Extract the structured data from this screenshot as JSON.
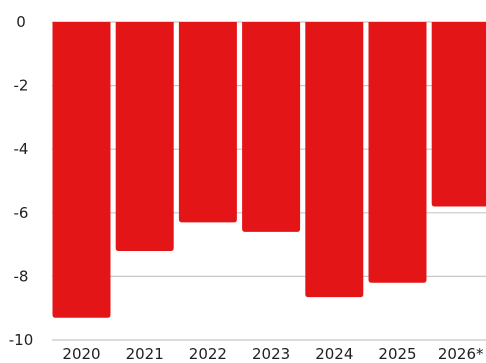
{
  "chart_data": {
    "type": "bar",
    "title": "",
    "xlabel": "",
    "ylabel": "",
    "categories": [
      "2020",
      "2021",
      "2022",
      "2023",
      "2024",
      "2025",
      "2026*"
    ],
    "values": [
      -9.3,
      -7.2,
      -6.3,
      -6.6,
      -8.65,
      -8.2,
      -5.8
    ],
    "ylim": [
      -10,
      0
    ],
    "yticks": [
      0,
      -2,
      -4,
      -6,
      -8,
      -10
    ],
    "ytick_labels": [
      "0",
      "-2",
      "-4",
      "-6",
      "-8",
      "-10"
    ],
    "grid": true,
    "legend": "none",
    "bar_color": "#e41517",
    "grid_color": "#c8c8c8"
  }
}
